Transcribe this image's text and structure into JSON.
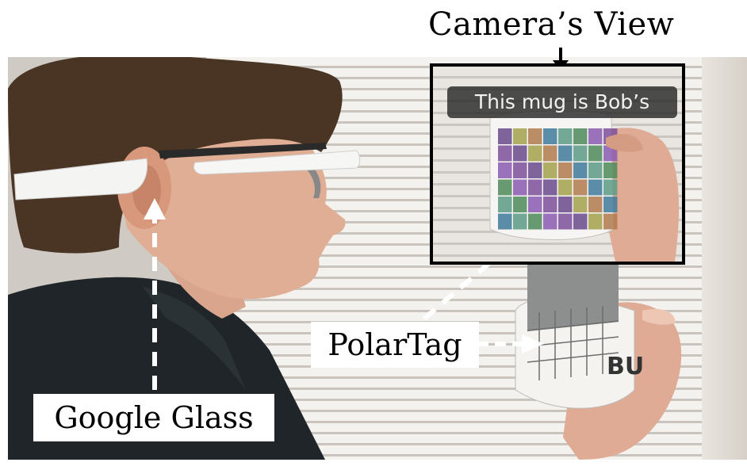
{
  "header": {
    "title": "Camera’s View"
  },
  "inset": {
    "caption": "This mug is Bob’s"
  },
  "labels": {
    "glass": "Google Glass",
    "tag": "PolarTag"
  },
  "colors": {
    "tile_palette": [
      "#6a4a8c",
      "#4f8a5a",
      "#b07a4c",
      "#7d4f9a",
      "#5a9a84",
      "#a3a04a",
      "#8a5ab0",
      "#3f7a9a"
    ]
  }
}
